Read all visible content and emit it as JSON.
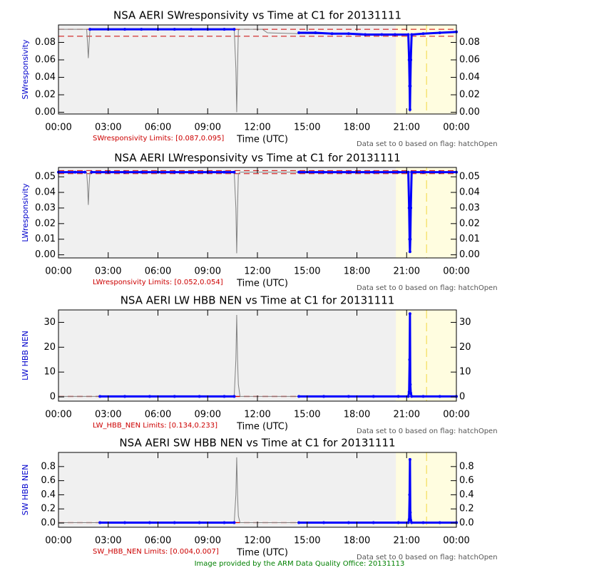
{
  "chart_data": [
    {
      "type": "line",
      "title": "NSA AERI SWresponsivity vs Time at C1 for 20131111",
      "ylabel": "SWresponsivity",
      "xlabel": "Time (UTC)",
      "limits_label": "SWresponsivity Limits: [0.087,0.095]",
      "limits": [
        0.087,
        0.095
      ],
      "note": "Data set to 0 based on flag: hatchOpen",
      "xlim": [
        0,
        24
      ],
      "xticks": [
        {
          "value": 0,
          "label": "00:00"
        },
        {
          "value": 3,
          "label": "03:00"
        },
        {
          "value": 6,
          "label": "06:00"
        },
        {
          "value": 9,
          "label": "09:00"
        },
        {
          "value": 12,
          "label": "12:00"
        },
        {
          "value": 15,
          "label": "15:00"
        },
        {
          "value": 18,
          "label": "18:00"
        },
        {
          "value": 21,
          "label": "21:00"
        },
        {
          "value": 24,
          "label": "00:00"
        }
      ],
      "ylim": [
        -0.002,
        0.1
      ],
      "yticks": [
        {
          "value": 0,
          "label": "0.00"
        },
        0.02,
        0.04,
        0.06,
        0.08
      ],
      "shaded": [
        20.35,
        24
      ],
      "flag_line": 22.2,
      "series": [
        {
          "color": "#808080",
          "x": [
            0,
            1.7,
            1.75,
            1.8,
            1.85,
            1.9,
            10.6,
            10.7,
            10.75,
            10.8,
            10.85,
            10.95,
            12.3,
            12.6,
            14.5,
            20.3,
            21.1,
            21.15,
            21.2,
            21.25,
            21.3,
            24
          ],
          "values": [
            0.095,
            0.095,
            0.08,
            0.062,
            0.08,
            0.095,
            0.095,
            0.05,
            0.0,
            0.05,
            0.094,
            0.095,
            0.095,
            0.091,
            0.09,
            0.089,
            0.089,
            0.04,
            0.0,
            0.04,
            0.089,
            0.092
          ]
        },
        {
          "color": "#0000ff",
          "x": [
            1.9,
            3,
            4,
            5,
            6,
            7,
            8,
            9,
            10,
            10.6,
            12,
            14.5,
            15.5,
            16.5,
            17.5,
            18.5,
            19.5,
            20.3,
            21.1,
            21.15,
            21.18,
            21.2,
            21.22,
            21.25,
            21.3,
            22,
            23,
            24
          ],
          "values": [
            0.095,
            0.095,
            0.095,
            0.095,
            0.095,
            0.095,
            0.095,
            0.095,
            0.095,
            0.095,
            null,
            0.091,
            0.091,
            0.09,
            0.09,
            0.089,
            0.089,
            0.089,
            0.089,
            0.06,
            0.03,
            0.003,
            0.03,
            0.06,
            0.089,
            0.09,
            0.091,
            0.092
          ]
        }
      ]
    },
    {
      "type": "line",
      "title": "NSA AERI LWresponsivity vs Time at C1 for 20131111",
      "ylabel": "LWresponsivity",
      "xlabel": "Time (UTC)",
      "limits_label": "LWresponsivity Limits: [0.052,0.054]",
      "limits": [
        0.052,
        0.054
      ],
      "note": "Data set to 0 based on flag: hatchOpen",
      "xlim": [
        0,
        24
      ],
      "xticks": [
        {
          "value": 0,
          "label": "00:00"
        },
        {
          "value": 3,
          "label": "03:00"
        },
        {
          "value": 6,
          "label": "06:00"
        },
        {
          "value": 9,
          "label": "09:00"
        },
        {
          "value": 12,
          "label": "12:00"
        },
        {
          "value": 15,
          "label": "15:00"
        },
        {
          "value": 18,
          "label": "18:00"
        },
        {
          "value": 21,
          "label": "21:00"
        },
        {
          "value": 24,
          "label": "00:00"
        }
      ],
      "ylim": [
        -0.002,
        0.056
      ],
      "yticks": [
        {
          "value": 0,
          "label": "0.00"
        },
        0.01,
        0.02,
        0.03,
        0.04,
        0.05
      ],
      "shaded": [
        20.35,
        24
      ],
      "flag_line": 22.2,
      "series": [
        {
          "color": "#808080",
          "x": [
            0,
            1.7,
            1.75,
            1.8,
            1.85,
            1.9,
            10.6,
            10.7,
            10.75,
            10.8,
            10.85,
            10.95,
            14.5,
            21.1,
            21.15,
            21.2,
            21.25,
            21.3,
            24
          ],
          "values": [
            0.053,
            0.053,
            0.045,
            0.032,
            0.045,
            0.053,
            0.053,
            0.03,
            0.001,
            0.03,
            0.052,
            0.053,
            0.053,
            0.053,
            0.025,
            0.002,
            0.025,
            0.053,
            0.053
          ]
        },
        {
          "color": "#0000ff",
          "x": [
            0,
            1,
            1.6,
            1.8,
            2.0,
            3,
            4,
            5,
            6,
            7,
            8,
            9,
            10,
            10.6,
            12.5,
            14.5,
            16,
            17.5,
            19,
            20.5,
            21.1,
            21.15,
            21.18,
            21.2,
            21.22,
            21.25,
            21.3,
            22,
            23,
            24
          ],
          "values": [
            0.053,
            0.053,
            0.053,
            null,
            0.053,
            0.053,
            0.053,
            0.053,
            0.053,
            0.053,
            0.053,
            0.053,
            0.053,
            0.053,
            null,
            0.053,
            0.053,
            0.053,
            0.053,
            0.053,
            0.053,
            0.03,
            0.01,
            0.002,
            0.01,
            0.03,
            0.053,
            0.053,
            0.053,
            0.053
          ]
        }
      ]
    },
    {
      "type": "line",
      "title": "NSA AERI LW HBB NEN vs Time at C1 for 20131111",
      "ylabel": "LW HBB NEN",
      "xlabel": "Time (UTC)",
      "limits_label": "LW_HBB_NEN Limits: [0.134,0.233]",
      "limits": [
        0.134,
        0.233
      ],
      "note": "Data set to 0 based on flag: hatchOpen",
      "xlim": [
        0,
        24
      ],
      "xticks": [
        {
          "value": 0,
          "label": "00:00"
        },
        {
          "value": 3,
          "label": "03:00"
        },
        {
          "value": 6,
          "label": "06:00"
        },
        {
          "value": 9,
          "label": "09:00"
        },
        {
          "value": 12,
          "label": "12:00"
        },
        {
          "value": 15,
          "label": "15:00"
        },
        {
          "value": 18,
          "label": "18:00"
        },
        {
          "value": 21,
          "label": "21:00"
        },
        {
          "value": 24,
          "label": "00:00"
        }
      ],
      "ylim": [
        -1.7,
        35
      ],
      "yticks": [
        0,
        10,
        20,
        30
      ],
      "shaded": [
        20.35,
        24
      ],
      "flag_line": 22.2,
      "series": [
        {
          "color": "#808080",
          "x": [
            0,
            10.6,
            10.7,
            10.75,
            10.8,
            10.85,
            10.95,
            21.1,
            21.2,
            21.3,
            24
          ],
          "values": [
            0.2,
            0.2,
            15,
            33,
            15,
            5,
            0.2,
            0.2,
            0.2,
            0.2,
            0.2
          ]
        },
        {
          "color": "#0000ff",
          "x": [
            2.5,
            4,
            5.5,
            7,
            8.5,
            10,
            10.6,
            12,
            14.5,
            16,
            17.5,
            19,
            20.5,
            21.1,
            21.15,
            21.18,
            21.2,
            21.22,
            21.25,
            21.3,
            22,
            23,
            24
          ],
          "values": [
            0.2,
            0.2,
            0.2,
            0.2,
            0.2,
            0.2,
            0.2,
            null,
            0.2,
            0.2,
            0.2,
            0.2,
            0.2,
            0.2,
            2,
            15,
            33.5,
            5,
            1.5,
            0.2,
            0.2,
            0.2,
            0.2
          ]
        }
      ]
    },
    {
      "type": "line",
      "title": "NSA AERI SW HBB NEN vs Time at C1 for 20131111",
      "ylabel": "SW HBB NEN",
      "xlabel": "Time (UTC)",
      "limits_label": "SW_HBB_NEN Limits: [0.004,0.007]",
      "limits": [
        0.004,
        0.007
      ],
      "note": "Data set to 0 based on flag: hatchOpen",
      "xlim": [
        0,
        24
      ],
      "xticks": [
        {
          "value": 0,
          "label": "00:00"
        },
        {
          "value": 3,
          "label": "03:00"
        },
        {
          "value": 6,
          "label": "06:00"
        },
        {
          "value": 9,
          "label": "09:00"
        },
        {
          "value": 12,
          "label": "12:00"
        },
        {
          "value": 15,
          "label": "15:00"
        },
        {
          "value": 18,
          "label": "18:00"
        },
        {
          "value": 21,
          "label": "21:00"
        },
        {
          "value": 24,
          "label": "00:00"
        }
      ],
      "ylim": [
        -0.06,
        1.0
      ],
      "yticks": [
        {
          "value": 0,
          "label": "0.0"
        },
        0.2,
        0.4,
        0.6,
        0.8
      ],
      "shaded": [
        20.35,
        24
      ],
      "flag_line": 22.2,
      "series": [
        {
          "color": "#808080",
          "x": [
            0,
            10.6,
            10.7,
            10.75,
            10.8,
            10.85,
            10.95,
            21.1,
            21.2,
            21.3,
            24
          ],
          "values": [
            0.005,
            0.005,
            0.4,
            0.93,
            0.4,
            0.1,
            0.005,
            0.005,
            0.005,
            0.005,
            0.005
          ]
        },
        {
          "color": "#0000ff",
          "x": [
            2.5,
            4,
            5.5,
            7,
            8.5,
            10,
            10.6,
            12,
            14.5,
            16,
            17.5,
            19,
            20.5,
            21.1,
            21.15,
            21.18,
            21.2,
            21.22,
            21.25,
            21.3,
            22,
            23,
            24
          ],
          "values": [
            0.005,
            0.005,
            0.005,
            0.005,
            0.005,
            0.005,
            0.005,
            null,
            0.005,
            0.005,
            0.005,
            0.005,
            0.005,
            0.005,
            0.05,
            0.4,
            0.9,
            0.15,
            0.04,
            0.005,
            0.005,
            0.005,
            0.005
          ]
        }
      ]
    }
  ],
  "footer": "Image provided by the ARM Data Quality Office: 20131113"
}
